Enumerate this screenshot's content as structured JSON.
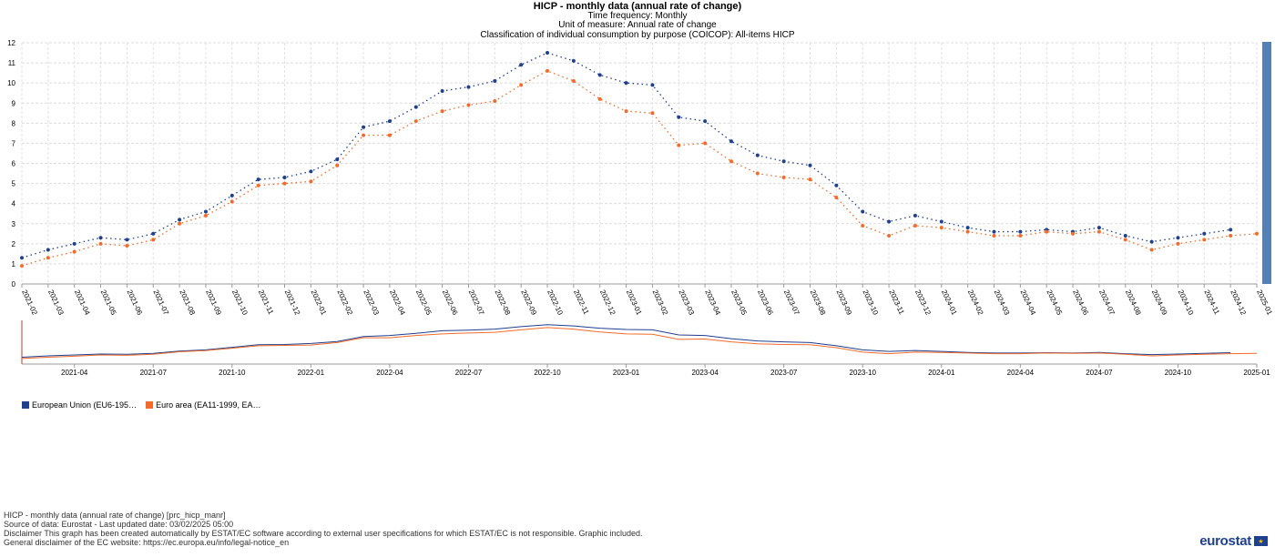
{
  "header": {
    "title": "HICP - monthly data (annual rate of change)",
    "line1": "Time frequency:  Monthly",
    "line2": "Unit of measure:  Annual rate of change",
    "line3": "Classification of individual consumption by purpose (COICOP):  All-items HICP"
  },
  "chart_data": {
    "type": "line",
    "title": "HICP - monthly data (annual rate of change)",
    "x": [
      "2021-02",
      "2021-03",
      "2021-04",
      "2021-05",
      "2021-06",
      "2021-07",
      "2021-08",
      "2021-09",
      "2021-10",
      "2021-11",
      "2021-12",
      "2022-01",
      "2022-02",
      "2022-03",
      "2022-04",
      "2022-05",
      "2022-06",
      "2022-07",
      "2022-08",
      "2022-09",
      "2022-10",
      "2022-11",
      "2022-12",
      "2023-01",
      "2023-02",
      "2023-03",
      "2023-04",
      "2023-05",
      "2023-06",
      "2023-07",
      "2023-08",
      "2023-09",
      "2023-10",
      "2023-11",
      "2023-12",
      "2024-01",
      "2024-02",
      "2024-03",
      "2024-04",
      "2024-05",
      "2024-06",
      "2024-07",
      "2024-08",
      "2024-09",
      "2024-10",
      "2024-11",
      "2024-12",
      "2025-01"
    ],
    "ylim": [
      0,
      12
    ],
    "yticks": [
      0,
      1,
      2,
      3,
      4,
      5,
      6,
      7,
      8,
      9,
      10,
      11,
      12
    ],
    "grid": true,
    "series": [
      {
        "name": "European Union (EU6-195…",
        "color": "#1f3f8f",
        "values": [
          1.3,
          1.7,
          2.0,
          2.3,
          2.2,
          2.5,
          3.2,
          3.6,
          4.4,
          5.2,
          5.3,
          5.6,
          6.2,
          7.8,
          8.1,
          8.8,
          9.6,
          9.8,
          10.1,
          10.9,
          11.5,
          11.1,
          10.4,
          10.0,
          9.9,
          8.3,
          8.1,
          7.1,
          6.4,
          6.1,
          5.9,
          4.9,
          3.6,
          3.1,
          3.4,
          3.1,
          2.8,
          2.6,
          2.6,
          2.7,
          2.6,
          2.8,
          2.4,
          2.1,
          2.3,
          2.5,
          2.7,
          null
        ]
      },
      {
        "name": "Euro area (EA11-1999, EA…",
        "color": "#f36b2a",
        "values": [
          0.9,
          1.3,
          1.6,
          2.0,
          1.9,
          2.2,
          3.0,
          3.4,
          4.1,
          4.9,
          5.0,
          5.1,
          5.9,
          7.4,
          7.4,
          8.1,
          8.6,
          8.9,
          9.1,
          9.9,
          10.6,
          10.1,
          9.2,
          8.6,
          8.5,
          6.9,
          7.0,
          6.1,
          5.5,
          5.3,
          5.2,
          4.3,
          2.9,
          2.4,
          2.9,
          2.8,
          2.6,
          2.4,
          2.4,
          2.6,
          2.5,
          2.6,
          2.2,
          1.7,
          2.0,
          2.2,
          2.4,
          2.5
        ]
      }
    ],
    "navigator_ticks": [
      "2021-04",
      "2021-07",
      "2021-10",
      "2022-01",
      "2022-04",
      "2022-07",
      "2022-10",
      "2023-01",
      "2023-04",
      "2023-07",
      "2023-10",
      "2024-01",
      "2024-04",
      "2024-07",
      "2024-10",
      "2025-01"
    ]
  },
  "legend": {
    "eu": "European Union (EU6-195…",
    "ea": "Euro area (EA11-1999, EA…"
  },
  "footer": {
    "l1": "HICP - monthly data (annual rate of change) [prc_hicp_manr]",
    "l2": "Source of data: Eurostat - Last updated date: 03/02/2025 05:00",
    "l3": "Disclaimer This graph has been created automatically by ESTAT/EC software according to external user specifications for which ESTAT/EC is not responsible. Graphic included.",
    "l4": "General disclaimer of the EC website: https://ec.europa.eu/info/legal-notice_en"
  },
  "logo": {
    "text": "eurostat"
  }
}
